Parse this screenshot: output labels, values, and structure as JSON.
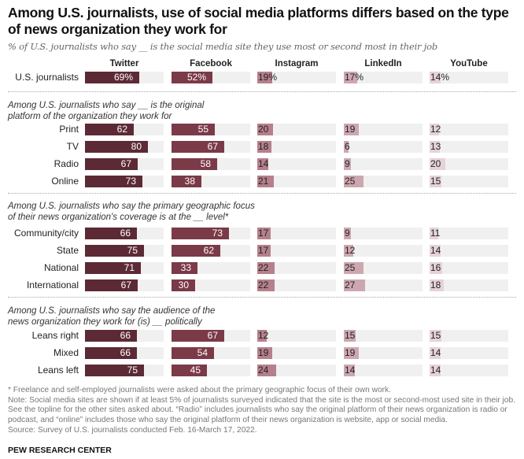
{
  "chart_data": {
    "type": "bar",
    "title": "Among U.S. journalists, use of social media platforms differs based on the type of news organization they work for",
    "subtitle": "% of U.S. journalists who say __ is the social media site they use most or second most in their job",
    "xlim": [
      0,
      100
    ],
    "platforms": [
      {
        "name": "Twitter",
        "color": "#5c2a35",
        "label_inside": true
      },
      {
        "name": "Facebook",
        "color": "#7b3a48",
        "label_inside": true
      },
      {
        "name": "Instagram",
        "color": "#b5808c",
        "label_inside": false
      },
      {
        "name": "LinkedIn",
        "color": "#cda7b0",
        "label_inside": false
      },
      {
        "name": "YouTube",
        "color": "#e6d2d7",
        "label_inside": false
      }
    ],
    "track_color": "#f0f0f0",
    "sections": [
      {
        "heading": "",
        "rows": [
          {
            "label": "U.S. journalists",
            "values": [
              69,
              52,
              19,
              17,
              14
            ],
            "suffix": "%"
          }
        ]
      },
      {
        "heading": "Among U.S. journalists who say __ is the original platform of the organization they work for",
        "heading_lines": [
          "Among U.S. journalists who say __ is the original",
          "platform of the organization they work for"
        ],
        "rows": [
          {
            "label": "Print",
            "values": [
              62,
              55,
              20,
              19,
              12
            ],
            "suffix": ""
          },
          {
            "label": "TV",
            "values": [
              80,
              67,
              18,
              6,
              13
            ],
            "suffix": ""
          },
          {
            "label": "Radio",
            "values": [
              67,
              58,
              14,
              9,
              20
            ],
            "suffix": ""
          },
          {
            "label": "Online",
            "values": [
              73,
              38,
              21,
              25,
              15
            ],
            "suffix": ""
          }
        ]
      },
      {
        "heading": "Among U.S. journalists who say the primary geographic focus of their news organization's coverage is at the __ level*",
        "heading_lines": [
          "Among U.S. journalists who say the primary geographic focus",
          "of their news organization's coverage is at the __ level*"
        ],
        "rows": [
          {
            "label": "Community/city",
            "values": [
              66,
              73,
              17,
              9,
              11
            ],
            "suffix": ""
          },
          {
            "label": "State",
            "values": [
              75,
              62,
              17,
              12,
              14
            ],
            "suffix": ""
          },
          {
            "label": "National",
            "values": [
              71,
              33,
              22,
              25,
              16
            ],
            "suffix": ""
          },
          {
            "label": "International",
            "values": [
              67,
              30,
              22,
              27,
              18
            ],
            "suffix": ""
          }
        ]
      },
      {
        "heading": "Among U.S. journalists who say the audience of the news organization they work for (is) __ politically",
        "heading_lines": [
          "Among U.S. journalists who say the audience of the",
          "news organization they work for (is) __ politically"
        ],
        "rows": [
          {
            "label": "Leans right",
            "values": [
              66,
              67,
              12,
              15,
              15
            ],
            "suffix": ""
          },
          {
            "label": "Mixed",
            "values": [
              66,
              54,
              19,
              19,
              14
            ],
            "suffix": ""
          },
          {
            "label": "Leans left",
            "values": [
              75,
              45,
              24,
              14,
              14
            ],
            "suffix": ""
          }
        ]
      }
    ]
  },
  "notes": {
    "footnote": "* Freelance and self-employed journalists were asked about the primary geographic focus of their own work.",
    "note": "Note: Social media sites are shown if at least 5% of journalists surveyed indicated that the site is the most or second-most used site in their job. See the topline for the other sites asked about. “Radio” includes journalists who say the original platform of their news organization is radio or podcast, and “online” includes those who say the original platform of their news organization is website, app or social media.",
    "source": "Source: Survey of U.S. journalists conducted Feb. 16-March 17, 2022."
  },
  "brand": "PEW RESEARCH CENTER"
}
